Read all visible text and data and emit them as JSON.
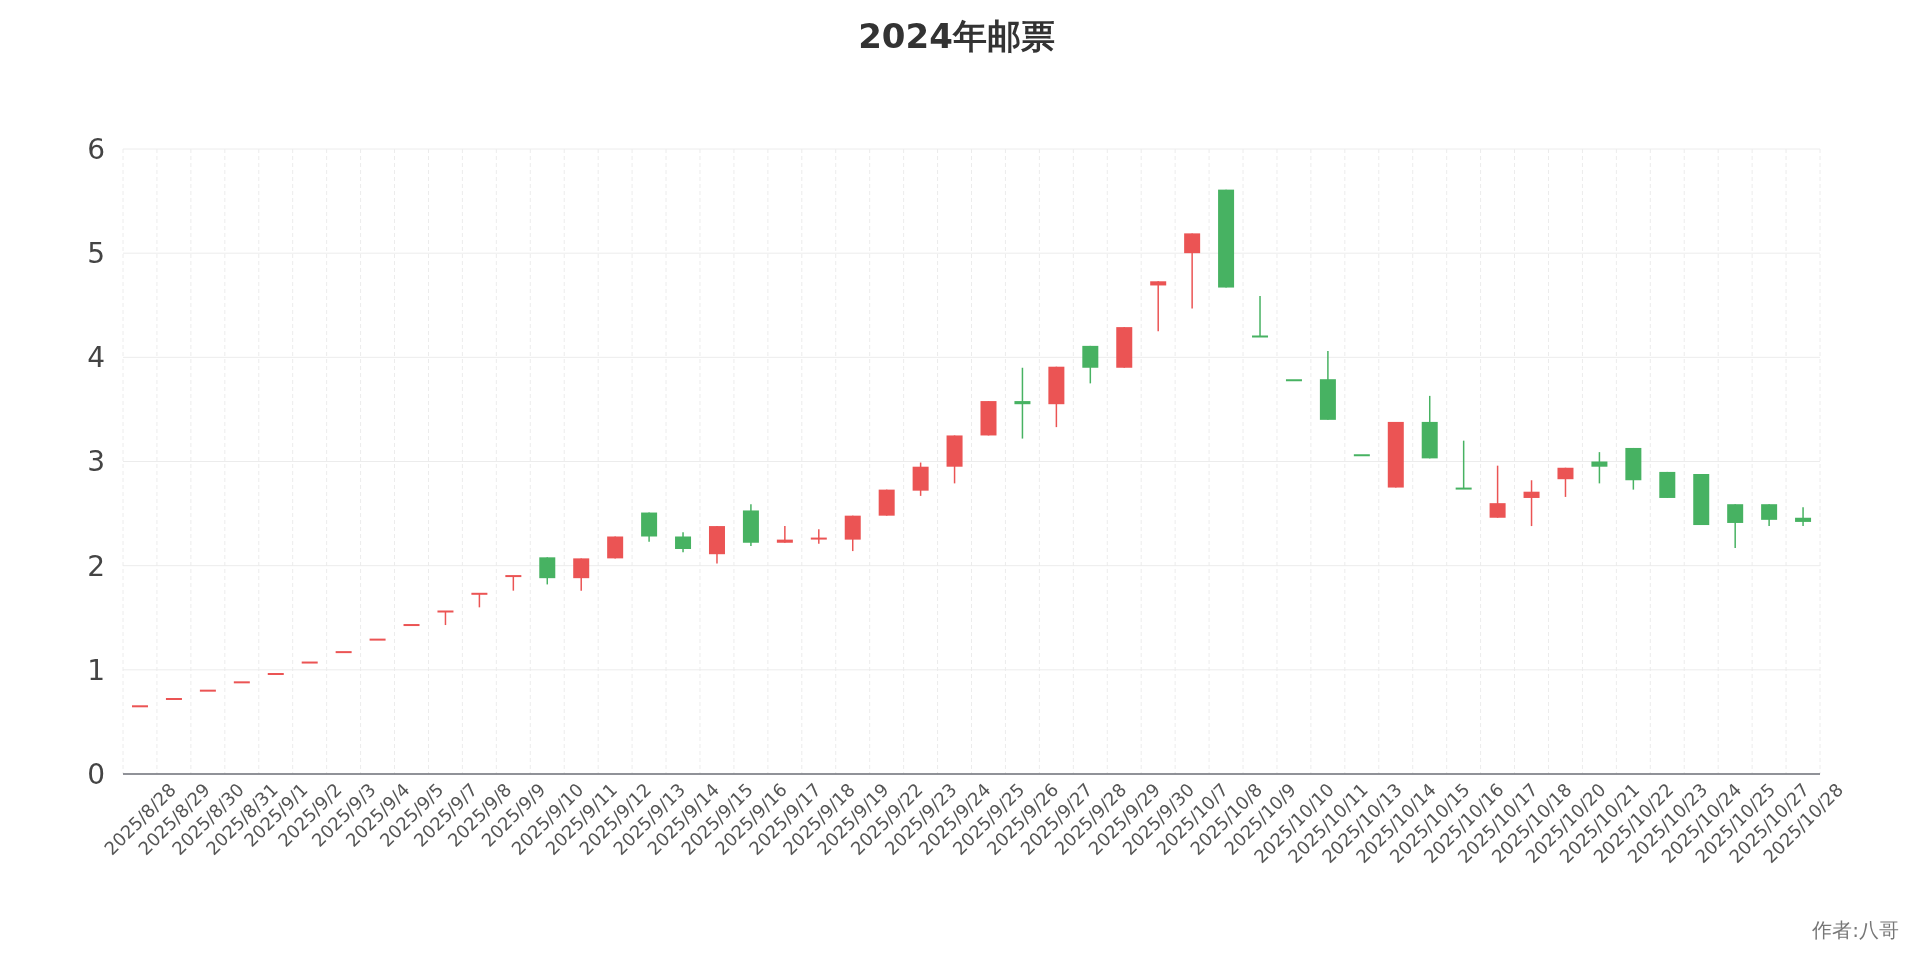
{
  "chart_data": {
    "type": "candlestick",
    "title": "2024年邮票",
    "categories": [
      "2025/8/28",
      "2025/8/29",
      "2025/8/30",
      "2025/8/31",
      "2025/9/1",
      "2025/9/2",
      "2025/9/3",
      "2025/9/4",
      "2025/9/5",
      "2025/9/7",
      "2025/9/8",
      "2025/9/9",
      "2025/9/10",
      "2025/9/11",
      "2025/9/12",
      "2025/9/13",
      "2025/9/14",
      "2025/9/15",
      "2025/9/16",
      "2025/9/17",
      "2025/9/18",
      "2025/9/19",
      "2025/9/22",
      "2025/9/23",
      "2025/9/24",
      "2025/9/25",
      "2025/9/26",
      "2025/9/27",
      "2025/9/28",
      "2025/9/29",
      "2025/9/30",
      "2025/10/7",
      "2025/10/8",
      "2025/10/9",
      "2025/10/10",
      "2025/10/11",
      "2025/10/13",
      "2025/10/14",
      "2025/10/15",
      "2025/10/16",
      "2025/10/17",
      "2025/10/18",
      "2025/10/20",
      "2025/10/21",
      "2025/10/22",
      "2025/10/23",
      "2025/10/24",
      "2025/10/25",
      "2025/10/27",
      "2025/10/28"
    ],
    "ohlc": [
      [
        0.65,
        0.65,
        0.65,
        0.65
      ],
      [
        0.72,
        0.72,
        0.72,
        0.72
      ],
      [
        0.8,
        0.8,
        0.8,
        0.8
      ],
      [
        0.88,
        0.88,
        0.88,
        0.88
      ],
      [
        0.96,
        0.96,
        0.96,
        0.96
      ],
      [
        1.07,
        1.07,
        1.07,
        1.07
      ],
      [
        1.17,
        1.17,
        1.17,
        1.17
      ],
      [
        1.29,
        1.29,
        1.29,
        1.29
      ],
      [
        1.43,
        1.43,
        1.43,
        1.43
      ],
      [
        1.56,
        1.56,
        1.43,
        1.56
      ],
      [
        1.73,
        1.73,
        1.6,
        1.73
      ],
      [
        1.9,
        1.9,
        1.76,
        1.9
      ],
      [
        2.08,
        2.08,
        1.82,
        1.88
      ],
      [
        1.88,
        2.07,
        1.76,
        2.07
      ],
      [
        2.07,
        2.28,
        2.07,
        2.28
      ],
      [
        2.51,
        2.51,
        2.23,
        2.28
      ],
      [
        2.28,
        2.32,
        2.13,
        2.16
      ],
      [
        2.11,
        2.38,
        2.02,
        2.38
      ],
      [
        2.53,
        2.59,
        2.19,
        2.22
      ],
      [
        2.22,
        2.38,
        2.22,
        2.25
      ],
      [
        2.25,
        2.35,
        2.21,
        2.26
      ],
      [
        2.25,
        2.48,
        2.14,
        2.48
      ],
      [
        2.48,
        2.73,
        2.48,
        2.73
      ],
      [
        2.72,
        2.99,
        2.67,
        2.95
      ],
      [
        2.95,
        3.25,
        2.79,
        3.25
      ],
      [
        3.25,
        3.58,
        3.25,
        3.58
      ],
      [
        3.58,
        3.9,
        3.22,
        3.55
      ],
      [
        3.55,
        3.91,
        3.33,
        3.91
      ],
      [
        4.11,
        4.11,
        3.75,
        3.9
      ],
      [
        3.9,
        4.29,
        3.9,
        4.29
      ],
      [
        4.69,
        4.73,
        4.25,
        4.73
      ],
      [
        5.0,
        5.19,
        4.47,
        5.19
      ],
      [
        5.61,
        5.61,
        4.67,
        4.67
      ],
      [
        4.2,
        4.59,
        4.2,
        4.2
      ],
      [
        3.78,
        3.78,
        3.78,
        3.78
      ],
      [
        3.79,
        4.06,
        3.4,
        3.4
      ],
      [
        3.06,
        3.06,
        3.06,
        3.06
      ],
      [
        2.75,
        3.38,
        2.75,
        3.38
      ],
      [
        3.38,
        3.63,
        3.03,
        3.03
      ],
      [
        2.74,
        3.2,
        2.74,
        2.74
      ],
      [
        2.46,
        2.96,
        2.46,
        2.6
      ],
      [
        2.65,
        2.82,
        2.38,
        2.71
      ],
      [
        2.83,
        2.94,
        2.66,
        2.94
      ],
      [
        3.0,
        3.09,
        2.79,
        2.95
      ],
      [
        3.13,
        3.13,
        2.73,
        2.82
      ],
      [
        2.9,
        2.9,
        2.65,
        2.65
      ],
      [
        2.88,
        2.88,
        2.39,
        2.39
      ],
      [
        2.59,
        2.59,
        2.17,
        2.41
      ],
      [
        2.59,
        2.59,
        2.38,
        2.44
      ],
      [
        2.46,
        2.56,
        2.38,
        2.42
      ]
    ],
    "colors": [
      "#eb5454",
      "#eb5454",
      "#eb5454",
      "#eb5454",
      "#eb5454",
      "#eb5454",
      "#eb5454",
      "#eb5454",
      "#eb5454",
      "#eb5454",
      "#eb5454",
      "#eb5454",
      "#47b262",
      "#eb5454",
      "#eb5454",
      "#47b262",
      "#47b262",
      "#eb5454",
      "#47b262",
      "#eb5454",
      "#eb5454",
      "#eb5454",
      "#eb5454",
      "#eb5454",
      "#eb5454",
      "#eb5454",
      "#47b262",
      "#eb5454",
      "#47b262",
      "#eb5454",
      "#eb5454",
      "#eb5454",
      "#47b262",
      "#47b262",
      "#47b262",
      "#47b262",
      "#47b262",
      "#eb5454",
      "#47b262",
      "#47b262",
      "#eb5454",
      "#eb5454",
      "#eb5454",
      "#47b262",
      "#47b262",
      "#47b262",
      "#47b262",
      "#47b262",
      "#47b262",
      "#47b262"
    ],
    "ylim": [
      0,
      6
    ],
    "yticks": [
      0,
      1,
      2,
      3,
      4,
      5,
      6
    ],
    "grid": true,
    "annotations": [
      "作者:八哥"
    ]
  }
}
